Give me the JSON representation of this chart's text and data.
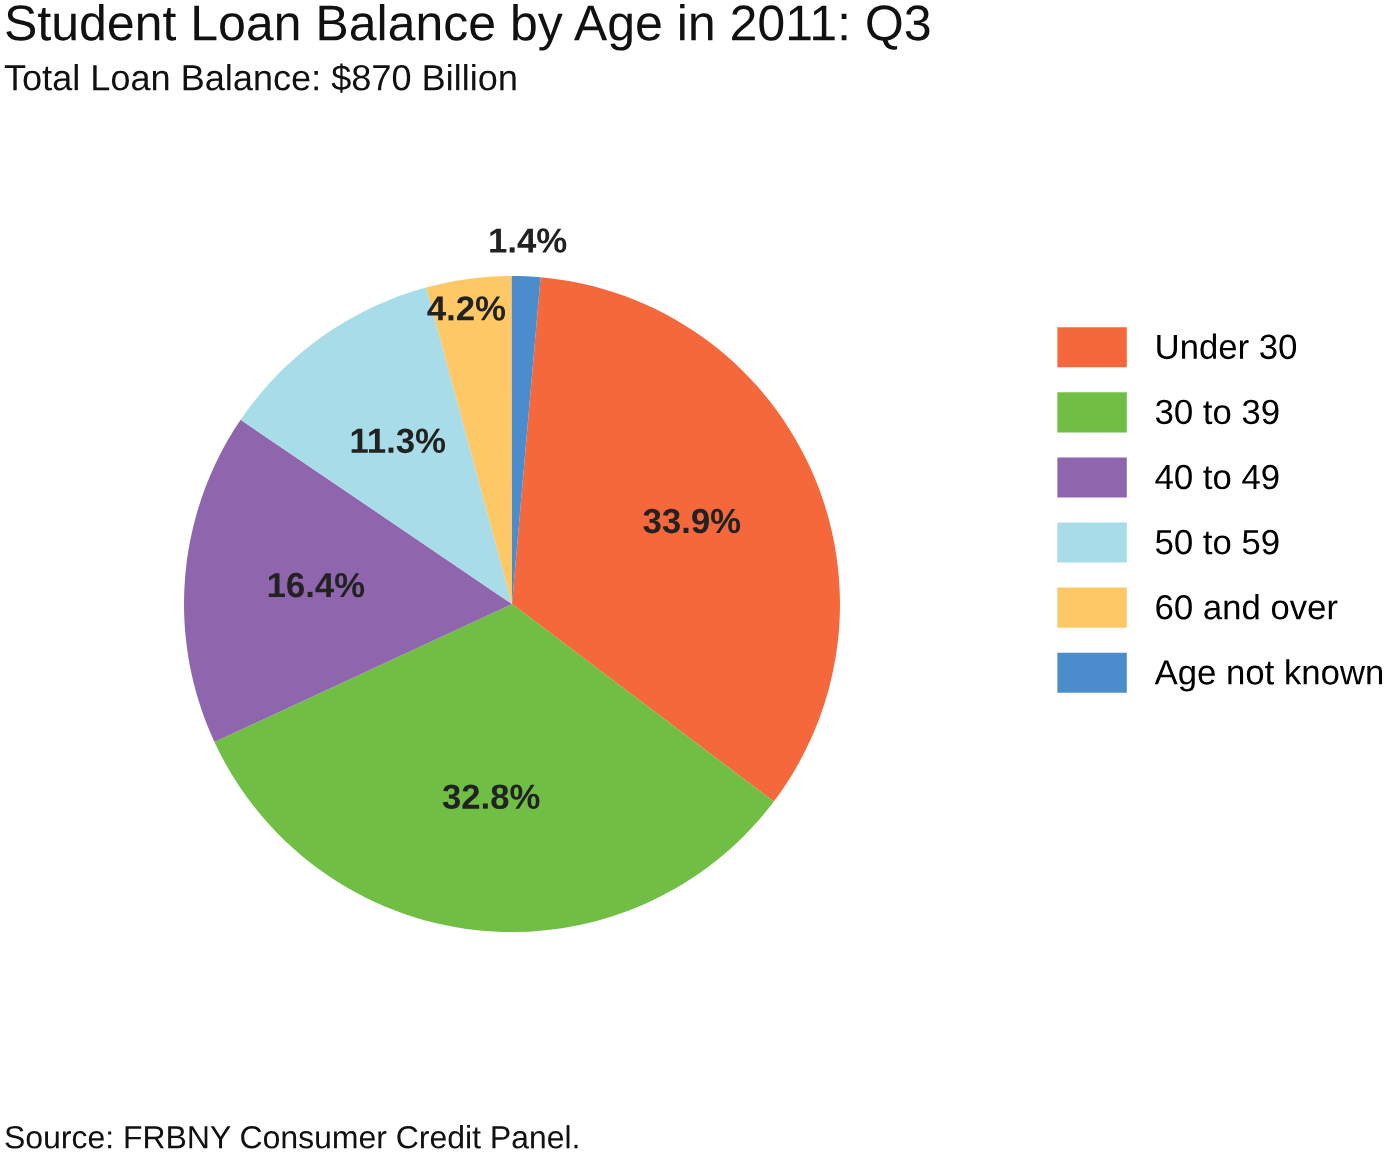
{
  "chart_data": {
    "type": "pie",
    "title": "Student Loan Balance by Age in 2011: Q3",
    "subtitle": "Total Loan Balance: $870 Billion",
    "categories": [
      "Under 30",
      "30 to 39",
      "40 to 49",
      "50 to 59",
      "60 and over",
      "Age not known"
    ],
    "values": [
      33.9,
      32.8,
      16.4,
      11.3,
      4.2,
      1.4
    ],
    "colors": [
      "#f4683c",
      "#70bf44",
      "#8f66ad",
      "#a8dce9",
      "#fec867",
      "#4a8ccc"
    ],
    "value_labels": [
      "33.9%",
      "32.8%",
      "16.4%",
      "11.3%",
      "4.2%",
      "1.4%"
    ],
    "legend": "right",
    "annotations": [
      "Source: FRBNY Consumer Credit Panel."
    ]
  }
}
